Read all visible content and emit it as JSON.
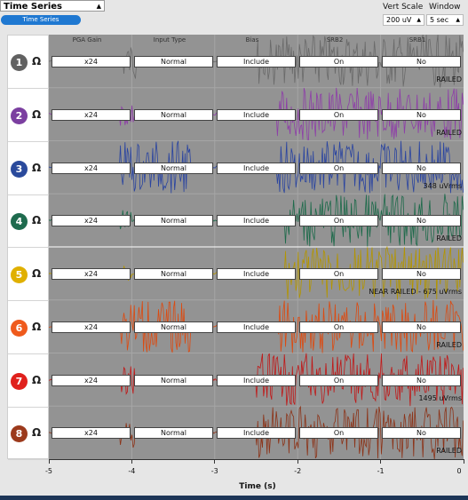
{
  "widget": {
    "mode": "Time Series",
    "mode_pill": "Time Series",
    "vert_scale_label": "Vert Scale",
    "window_label": "Window",
    "vert_scale_value": "200 uV",
    "window_value": "5 sec"
  },
  "columns": [
    "PGA Gain",
    "Input Type",
    "Bias",
    "SRB2",
    "SRB1"
  ],
  "channels": [
    {
      "num": "1",
      "color": "#616161",
      "wave": "#6a6a6a",
      "gain": "x24",
      "input": "Normal",
      "bias": "Include",
      "srb2": "On",
      "srb1": "No",
      "status": "RAILED"
    },
    {
      "num": "2",
      "color": "#7b3fa0",
      "wave": "#8e3ea8",
      "gain": "x24",
      "input": "Normal",
      "bias": "Include",
      "srb2": "On",
      "srb1": "No",
      "status": "RAILED"
    },
    {
      "num": "3",
      "color": "#2a4a9c",
      "wave": "#2a44a0",
      "gain": "x24",
      "input": "Normal",
      "bias": "Include",
      "srb2": "On",
      "srb1": "No",
      "status": "348 uVrms"
    },
    {
      "num": "4",
      "color": "#1e6b4e",
      "wave": "#1d6a4a",
      "gain": "x24",
      "input": "Normal",
      "bias": "Include",
      "srb2": "On",
      "srb1": "No",
      "status": "RAILED"
    },
    {
      "num": "5",
      "color": "#e0b000",
      "wave": "#b39500",
      "gain": "x24",
      "input": "Normal",
      "bias": "Include",
      "srb2": "On",
      "srb1": "No",
      "status": "NEAR RAILED - 675 uVrms"
    },
    {
      "num": "6",
      "color": "#ef5a1c",
      "wave": "#dc4a10",
      "gain": "x24",
      "input": "Normal",
      "bias": "Include",
      "srb2": "On",
      "srb1": "No",
      "status": "RAILED"
    },
    {
      "num": "7",
      "color": "#e0201c",
      "wave": "#c01818",
      "gain": "x24",
      "input": "Normal",
      "bias": "Include",
      "srb2": "On",
      "srb1": "No",
      "status": "1495 uVrms"
    },
    {
      "num": "8",
      "color": "#9c3a1c",
      "wave": "#8c3318",
      "gain": "x24",
      "input": "Normal",
      "bias": "Include",
      "srb2": "On",
      "srb1": "No",
      "status": "RAILED"
    }
  ],
  "x_axis": {
    "label": "Time (s)",
    "ticks": [
      "-5",
      "-4",
      "-3",
      "-2",
      "-1",
      "0"
    ]
  }
}
